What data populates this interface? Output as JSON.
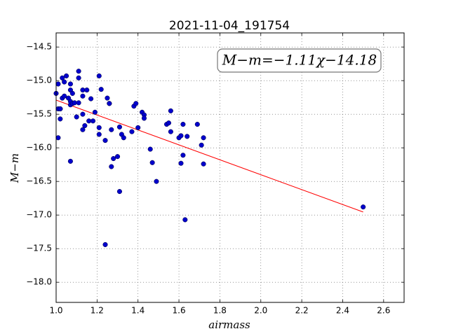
{
  "chart_data": {
    "type": "scatter",
    "title": "2021-11-04_191754",
    "x_label": "airmass",
    "y_label": "M−m",
    "annotation": "M−m=−1.11χ−14.18",
    "grid": true,
    "xlim": [
      1.0,
      2.7
    ],
    "ylim": [
      -18.3,
      -14.29
    ],
    "xticks": [
      {
        "value": 1.0,
        "label": "1.0"
      },
      {
        "value": 1.2,
        "label": "1.2"
      },
      {
        "value": 1.4,
        "label": "1.4"
      },
      {
        "value": 1.6,
        "label": "1.6"
      },
      {
        "value": 1.8,
        "label": "1.8"
      },
      {
        "value": 2.0,
        "label": "2.0"
      },
      {
        "value": 2.2,
        "label": "2.2"
      },
      {
        "value": 2.4,
        "label": "2.4"
      },
      {
        "value": 2.6,
        "label": "2.6"
      }
    ],
    "yticks": [
      {
        "value": -14.5,
        "label": "−14.5"
      },
      {
        "value": -15.0,
        "label": "−15.0"
      },
      {
        "value": -15.5,
        "label": "−15.5"
      },
      {
        "value": -16.0,
        "label": "−16.0"
      },
      {
        "value": -16.5,
        "label": "−16.5"
      },
      {
        "value": -17.0,
        "label": "−17.0"
      },
      {
        "value": -17.5,
        "label": "−17.5"
      },
      {
        "value": -18.0,
        "label": "−18.0"
      }
    ],
    "points": {
      "color": "#0000cc",
      "x": [
        1.0,
        1.01,
        1.01,
        1.02,
        1.02,
        1.02,
        1.01,
        1.03,
        1.04,
        1.03,
        1.05,
        1.04,
        1.06,
        1.07,
        1.07,
        1.07,
        1.07,
        1.08,
        1.08,
        1.09,
        1.07,
        1.1,
        1.11,
        1.11,
        1.11,
        1.13,
        1.13,
        1.13,
        1.13,
        1.14,
        1.15,
        1.17,
        1.16,
        1.18,
        1.19,
        1.21,
        1.22,
        1.21,
        1.21,
        1.24,
        1.24,
        1.25,
        1.26,
        1.26,
        1.27,
        1.27,
        1.28,
        1.3,
        1.31,
        1.31,
        1.32,
        1.33,
        1.37,
        1.38,
        1.39,
        1.4,
        1.42,
        1.43,
        1.43,
        1.46,
        1.47,
        1.49,
        1.54,
        1.55,
        1.56,
        1.56,
        1.6,
        1.61,
        1.61,
        1.62,
        1.62,
        1.63,
        1.64,
        1.69,
        1.71,
        1.72,
        1.72,
        2.5
      ],
      "y": [
        -15.19,
        -15.85,
        -15.42,
        -15.42,
        -15.57,
        -15.42,
        -15.05,
        -14.96,
        -15.02,
        -15.26,
        -14.93,
        -15.23,
        -15.26,
        -15.36,
        -15.05,
        -15.14,
        -15.31,
        -15.19,
        -15.34,
        -15.33,
        -16.2,
        -15.54,
        -14.86,
        -14.96,
        -15.33,
        -15.23,
        -15.14,
        -15.5,
        -15.73,
        -15.67,
        -15.14,
        -15.27,
        -15.6,
        -15.6,
        -15.47,
        -14.93,
        -15.13,
        -15.7,
        -15.8,
        -15.89,
        -17.44,
        -15.26,
        -15.34,
        -15.34,
        -15.73,
        -16.28,
        -16.16,
        -16.13,
        -15.69,
        -16.65,
        -15.8,
        -15.85,
        -15.76,
        -15.38,
        -15.34,
        -15.7,
        -15.47,
        -15.51,
        -15.56,
        -16.02,
        -16.22,
        -16.5,
        -15.65,
        -15.63,
        -15.45,
        -15.76,
        -15.85,
        -15.82,
        -16.23,
        -15.65,
        -16.11,
        -17.07,
        -15.83,
        -15.65,
        -15.96,
        -15.85,
        -16.24,
        -16.88
      ]
    },
    "fit": {
      "color": "#ff0000",
      "x": [
        1.0,
        2.5
      ],
      "y": [
        -15.29,
        -16.955
      ]
    }
  }
}
